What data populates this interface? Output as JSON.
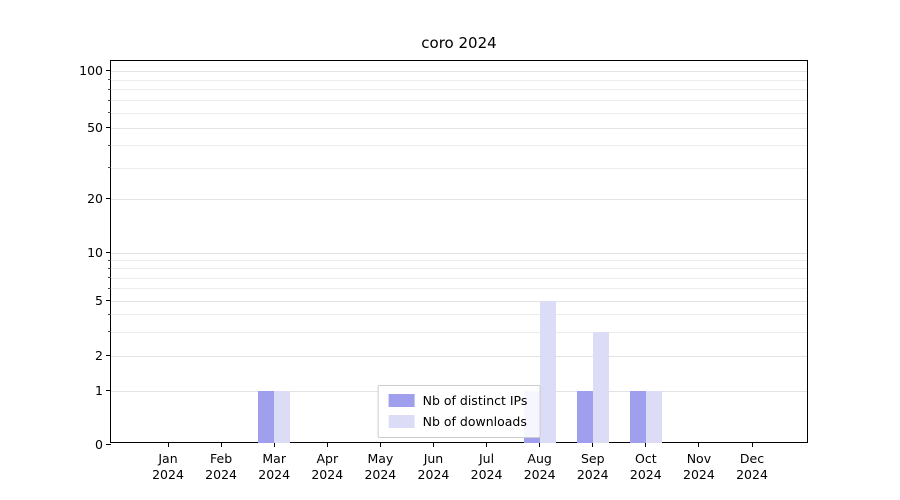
{
  "title": "coro 2024",
  "chart_data": {
    "type": "bar",
    "title": "coro 2024",
    "categories": [
      "Jan 2024",
      "Feb 2024",
      "Mar 2024",
      "Apr 2024",
      "May 2024",
      "Jun 2024",
      "Jul 2024",
      "Aug 2024",
      "Sep 2024",
      "Oct 2024",
      "Nov 2024",
      "Dec 2024"
    ],
    "series": [
      {
        "name": "Nb of distinct IPs",
        "color": "#9f9fee",
        "values": [
          0,
          0,
          1,
          0,
          0,
          0,
          0,
          1,
          1,
          1,
          0,
          0
        ]
      },
      {
        "name": "Nb of downloads",
        "color": "#dcdcf6",
        "values": [
          0,
          0,
          1,
          0,
          0,
          0,
          0,
          5,
          3,
          1,
          0,
          0
        ]
      }
    ],
    "yticks": [
      0,
      1,
      2,
      5,
      10,
      20,
      50,
      100
    ],
    "minor_gridlines": [
      3,
      4,
      6,
      7,
      8,
      9,
      30,
      40,
      60,
      70,
      80,
      90
    ],
    "xlabel": "",
    "ylabel": "",
    "ylim": [
      0,
      110
    ],
    "yscale": "log-like-with-zero",
    "grid": "horizontal",
    "legend_position": "lower-center-inside"
  }
}
